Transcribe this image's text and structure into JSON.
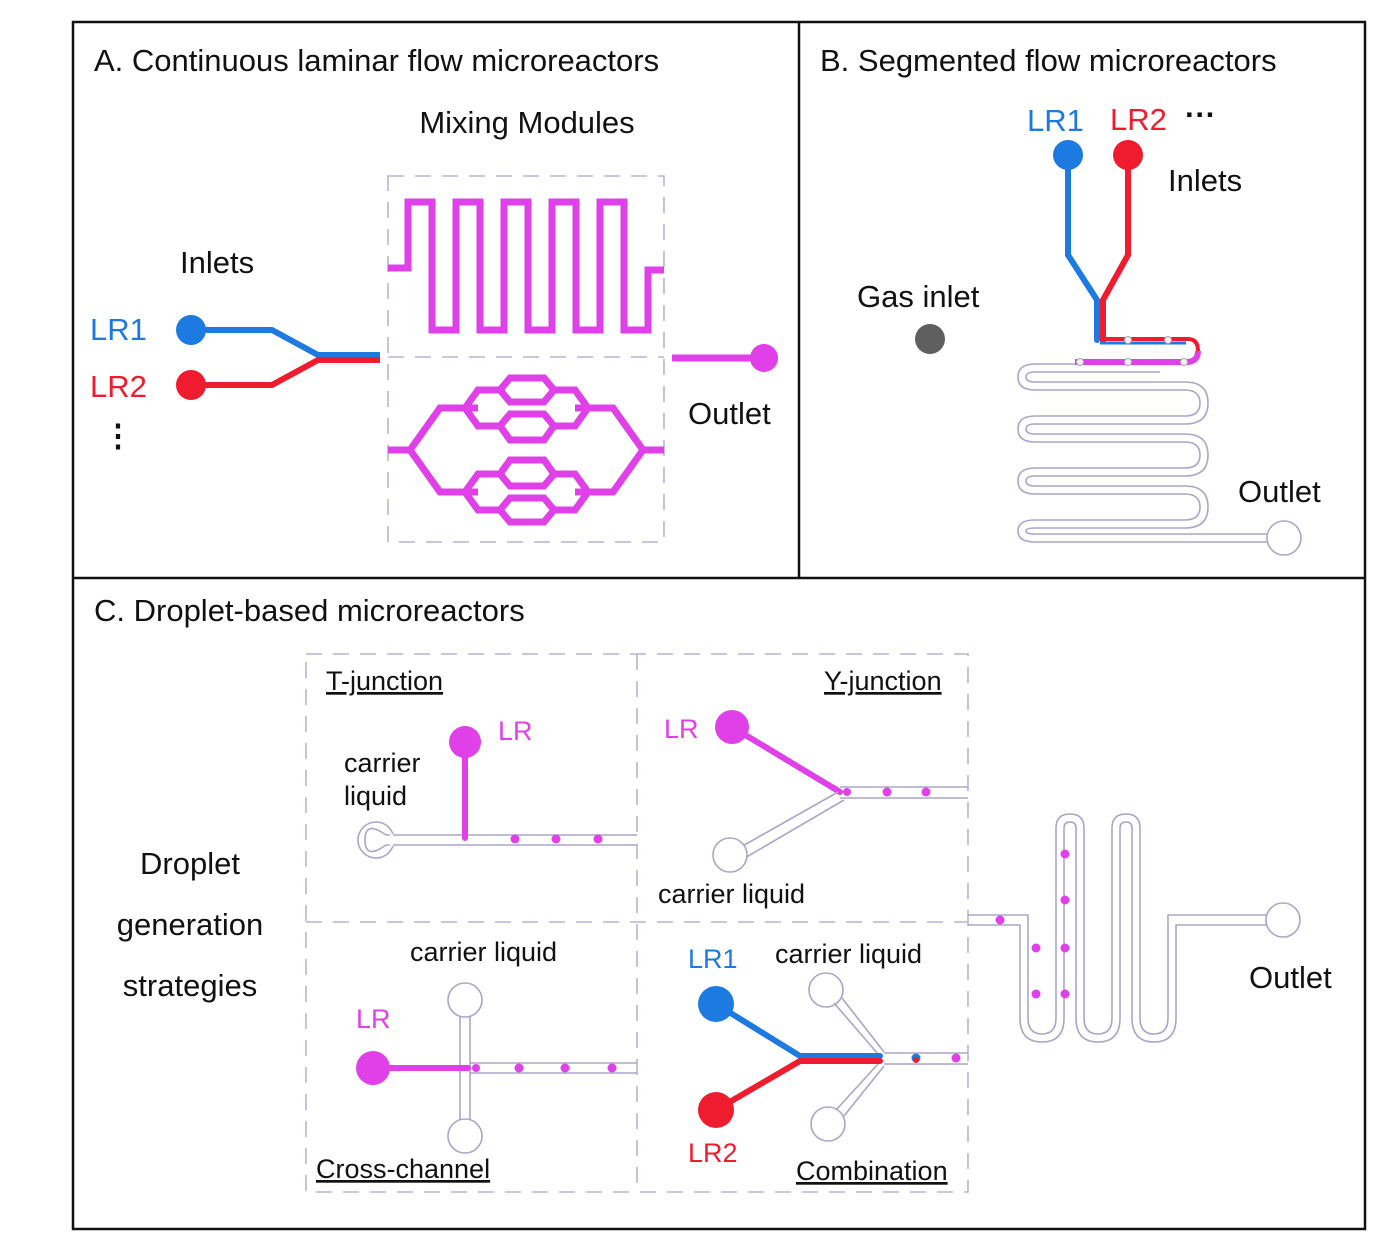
{
  "panel_a": {
    "title": "A. Continuous laminar flow microreactors",
    "mixing_modules": "Mixing Modules",
    "inlets": "Inlets",
    "lr1": "LR1",
    "lr2": "LR2",
    "ellipsis": "⋮",
    "outlet": "Outlet"
  },
  "panel_b": {
    "title": "B. Segmented flow microreactors",
    "lr1": "LR1",
    "lr2": "LR2",
    "more": "···",
    "inlets": "Inlets",
    "gas_inlet": "Gas inlet",
    "outlet": "Outlet"
  },
  "panel_c": {
    "title": "C. Droplet-based microreactors",
    "strategy_line1": "Droplet",
    "strategy_line2": "generation",
    "strategy_line3": "strategies",
    "t_junction": "T-junction",
    "y_junction": "Y-junction",
    "cross_channel": "Cross-channel",
    "combination": "Combination",
    "lr": "LR",
    "carrier_line1": "carrier",
    "carrier_line2": "liquid",
    "carrier_liquid": "carrier liquid",
    "lr1": "LR1",
    "lr2": "LR2",
    "outlet": "Outlet"
  },
  "colors": {
    "lr1": "#1c7ae0",
    "lr2": "#ee1c2e",
    "lr": "#e040e8",
    "gas": "#6b6b6b",
    "channel_outline": "#a9a6c9"
  }
}
